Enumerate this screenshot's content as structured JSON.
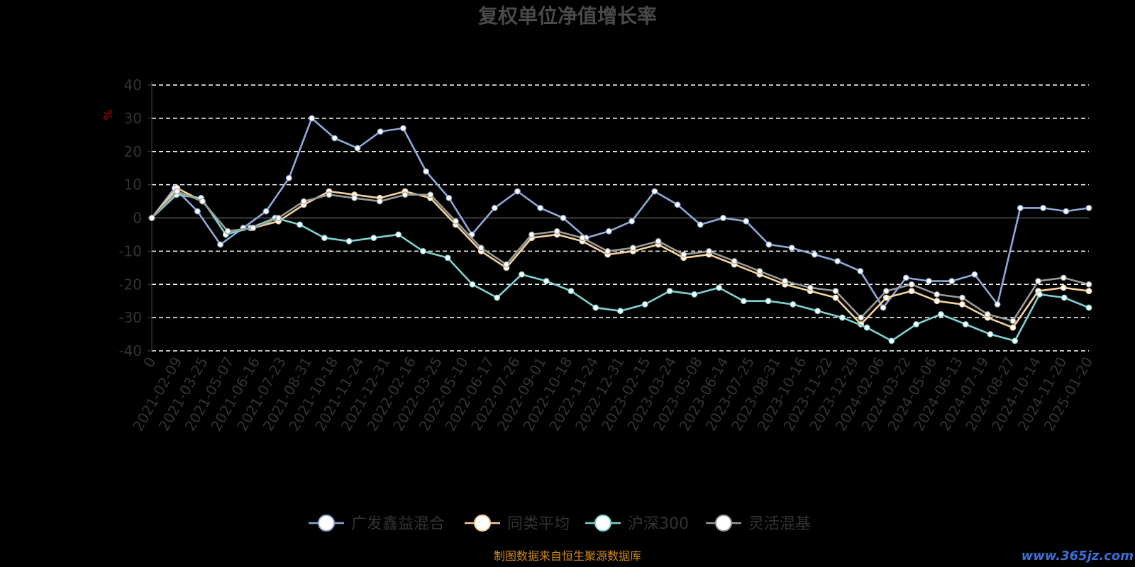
{
  "chart_data": {
    "type": "line",
    "title": "复权单位净值增长率",
    "ylabel": "%",
    "ylim": [
      -40,
      40
    ],
    "yticks": [
      40,
      30,
      20,
      10,
      0,
      -10,
      -20,
      -30,
      -40
    ],
    "grid": "horizontal-dashed",
    "legend_position": "bottom",
    "x_tick_labels": [
      "0",
      "2021-02-09",
      "2021-03-25",
      "2021-05-07",
      "2021-06-16",
      "2021-07-23",
      "2021-08-31",
      "2021-10-18",
      "2021-11-24",
      "2021-12-31",
      "2022-02-16",
      "2022-03-25",
      "2022-05-10",
      "2022-06-17",
      "2022-07-26",
      "2022-09-01",
      "2022-10-18",
      "2022-11-24",
      "2022-12-31",
      "2023-02-15",
      "2023-03-24",
      "2023-05-08",
      "2023-06-14",
      "2023-07-25",
      "2023-08-31",
      "2023-10-16",
      "2023-11-22",
      "2023-12-29",
      "2024-02-06",
      "2024-03-22",
      "2024-05-06",
      "2024-06-13",
      "2024-07-19",
      "2024-08-27",
      "2024-10-14",
      "2024-11-20",
      "2025-01-20"
    ],
    "series": [
      {
        "name": "广发鑫益混合",
        "color": "#8fa9d8",
        "values": [
          0,
          9,
          2,
          -8,
          -3,
          2,
          12,
          30,
          24,
          21,
          26,
          27,
          14,
          6,
          -5,
          3,
          8,
          3,
          0,
          -6,
          -4,
          -1,
          8,
          4,
          -2,
          0,
          -1,
          -8,
          -9,
          -11,
          -13,
          -16,
          -27,
          -18,
          -19,
          -19,
          -17,
          -26,
          3,
          3,
          2,
          3
        ]
      },
      {
        "name": "同类平均",
        "color": "#f5d39a",
        "values": [
          0,
          9,
          5,
          -4,
          -3,
          -1,
          4,
          8,
          7,
          6,
          8,
          6,
          -2,
          -10,
          -15,
          -6,
          -5,
          -7,
          -11,
          -10,
          -8,
          -12,
          -11,
          -14,
          -17,
          -20,
          -22,
          -24,
          -32,
          -24,
          -22,
          -25,
          -26,
          -30,
          -33,
          -22,
          -21,
          -22
        ]
      },
      {
        "name": "沪深300",
        "color": "#7ed3d1",
        "values": [
          0,
          7,
          6,
          -5,
          -3,
          0,
          -2,
          -6,
          -7,
          -6,
          -5,
          -10,
          -12,
          -20,
          -24,
          -17,
          -19,
          -22,
          -27,
          -28,
          -26,
          -22,
          -23,
          -21,
          -25,
          -25,
          -26,
          -28,
          -30,
          -33,
          -37,
          -32,
          -29,
          -32,
          -35,
          -37,
          -23,
          -24,
          -27
        ]
      },
      {
        "name": "灵活混基",
        "color": "#9a9a9a",
        "values": [
          0,
          8,
          5,
          -4,
          -3,
          0,
          5,
          7,
          6,
          5,
          7,
          7,
          -1,
          -9,
          -14,
          -5,
          -4,
          -6,
          -10,
          -9,
          -7,
          -11,
          -10,
          -13,
          -16,
          -19,
          -21,
          -22,
          -30,
          -22,
          -20,
          -23,
          -24,
          -29,
          -31,
          -19,
          -18,
          -20
        ]
      }
    ]
  },
  "source_text": "制图数据来自恒生聚源数据库",
  "watermark_text": "www.365jz.com"
}
